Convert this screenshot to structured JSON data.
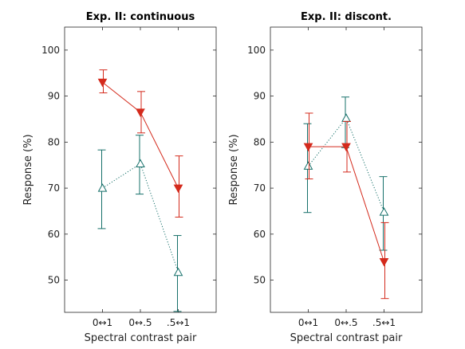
{
  "chart_data": [
    {
      "type": "line",
      "title": "Exp. II: continuous",
      "xlabel": "Spectral contrast pair",
      "ylabel": "Response (%)",
      "categories": [
        "0↔1",
        "0↔.5",
        ".5↔1"
      ],
      "ylim": [
        43,
        105
      ],
      "yticks": [
        50,
        60,
        70,
        80,
        90,
        100
      ],
      "grid": false,
      "series": [
        {
          "color": "#d42a1c",
          "marker": "filled-down-triangle",
          "line": "solid",
          "values": [
            93,
            86.5,
            70
          ],
          "err_low": [
            90.7,
            82,
            63.7
          ],
          "err_high": [
            95.7,
            91,
            77
          ]
        },
        {
          "color": "#16706a",
          "marker": "open-up-triangle",
          "line": "dotted",
          "values": [
            70,
            75.3,
            51.7
          ],
          "err_low": [
            61.2,
            68.7,
            43.2
          ],
          "err_high": [
            78.3,
            81.5,
            59.7
          ]
        }
      ]
    },
    {
      "type": "line",
      "title": "Exp. II: discont.",
      "xlabel": "Spectral contrast pair",
      "ylabel": "Response (%)",
      "categories": [
        "0↔1",
        "0↔.5",
        ".5↔1"
      ],
      "ylim": [
        43,
        105
      ],
      "yticks": [
        50,
        60,
        70,
        80,
        90,
        100
      ],
      "grid": false,
      "series": [
        {
          "color": "#d42a1c",
          "marker": "filled-down-triangle",
          "line": "solid",
          "values": [
            79,
            79,
            54
          ],
          "err_low": [
            72,
            73.5,
            46
          ],
          "err_high": [
            86.3,
            84.5,
            62.5
          ]
        },
        {
          "color": "#16706a",
          "marker": "open-up-triangle",
          "line": "dotted",
          "values": [
            74.8,
            85.2,
            64.8
          ],
          "err_low": [
            64.7,
            78.8,
            56.5
          ],
          "err_high": [
            84,
            89.8,
            72.5
          ]
        }
      ]
    }
  ]
}
